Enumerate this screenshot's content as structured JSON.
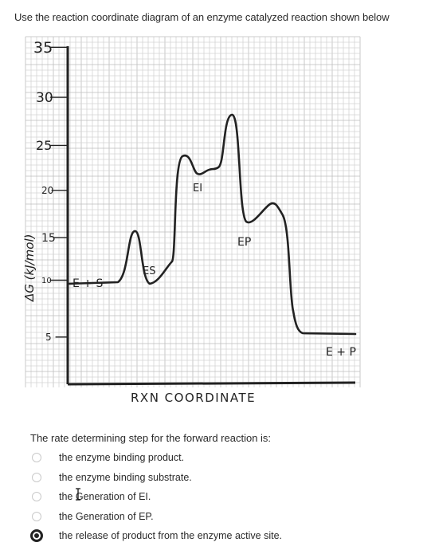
{
  "question": {
    "text": "Use the reaction coordinate diagram of an enzyme catalyzed reaction shown below"
  },
  "diagram": {
    "y_axis_label": "ΔG (kJ/mol)",
    "x_axis_label": "RXN COORDINATE",
    "y_ticks": [
      "35",
      "30",
      "25",
      "20",
      "15",
      "10",
      "5"
    ],
    "species": {
      "e_plus_s": "E + S",
      "es": "ES",
      "ei": "EI",
      "ep": "EP",
      "e_plus_p": "E + P"
    }
  },
  "prompt": "The rate determining step for the forward reaction is:",
  "options": [
    {
      "label": "the enzyme binding product.",
      "selected": false
    },
    {
      "label": "the enzyme binding substrate.",
      "selected": false
    },
    {
      "label": "the Generation of EI.",
      "selected": false
    },
    {
      "label": "the Generation of EP.",
      "selected": false
    },
    {
      "label": "the release of product from the enzyme active site.",
      "selected": true
    }
  ],
  "colors": {
    "ink": "#222222",
    "grid": "#d4d4d4",
    "grid_major": "#bdbdbd"
  },
  "icons": {
    "cursor": "text-cursor-icon"
  }
}
